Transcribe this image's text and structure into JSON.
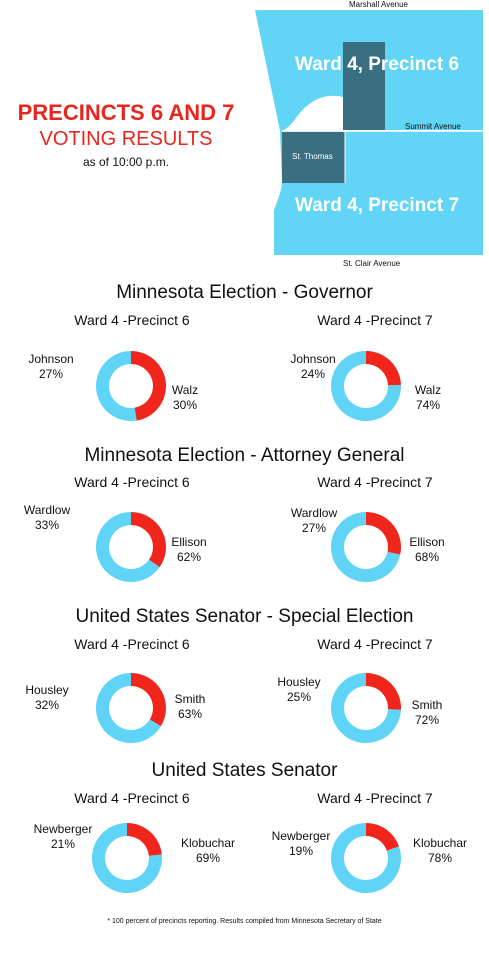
{
  "header": {
    "title_line1": "PRECINCTS 6 AND 7",
    "title_line2": "VOTING RESULTS",
    "subtitle": "as of 10:00 p.m.",
    "accent_color": "#e8261d"
  },
  "map": {
    "streets": {
      "marshall": "Marshall Avenue",
      "summit": "Summit Avenue",
      "st_clair": "St. Clair Avenue"
    },
    "st_thomas": "St. Thomas",
    "precinct6_label": "Ward 4, Precinct 6",
    "precinct7_label": "Ward 4, Precinct 7",
    "colors": {
      "light": "#62d5f6",
      "dark": "#3a6f82"
    }
  },
  "colors": {
    "red": "#f0251c",
    "blue": "#5fd4f7"
  },
  "chart_data": [
    {
      "type": "pie",
      "title": "Minnesota Election - Governor",
      "charts": [
        {
          "precinct": "Ward 4 -Precinct 6",
          "slices": [
            {
              "name": "Johnson",
              "value": 27,
              "label": "27%"
            },
            {
              "name": "Walz",
              "value": 30,
              "label": "30%"
            }
          ]
        },
        {
          "precinct": "Ward 4 -Precinct 7",
          "slices": [
            {
              "name": "Johnson",
              "value": 24,
              "label": "24%"
            },
            {
              "name": "Walz",
              "value": 74,
              "label": "74%"
            }
          ]
        }
      ]
    },
    {
      "type": "pie",
      "title": "Minnesota Election - Attorney General",
      "charts": [
        {
          "precinct": "Ward 4 -Precinct 6",
          "slices": [
            {
              "name": "Wardlow",
              "value": 33,
              "label": "33%"
            },
            {
              "name": "Ellison",
              "value": 62,
              "label": "62%"
            }
          ]
        },
        {
          "precinct": "Ward 4 -Precinct 7",
          "slices": [
            {
              "name": "Wardlow",
              "value": 27,
              "label": "27%"
            },
            {
              "name": "Ellison",
              "value": 68,
              "label": "68%"
            }
          ]
        }
      ]
    },
    {
      "type": "pie",
      "title": "United States Senator - Special Election",
      "charts": [
        {
          "precinct": "Ward 4 -Precinct 6",
          "slices": [
            {
              "name": "Housley",
              "value": 32,
              "label": "32%"
            },
            {
              "name": "Smith",
              "value": 63,
              "label": "63%"
            }
          ]
        },
        {
          "precinct": "Ward 4 -Precinct 7",
          "slices": [
            {
              "name": "Housley",
              "value": 25,
              "label": "25%"
            },
            {
              "name": "Smith",
              "value": 72,
              "label": "72%"
            }
          ]
        }
      ]
    },
    {
      "type": "pie",
      "title": "United States Senator",
      "charts": [
        {
          "precinct": "Ward 4 -Precinct 6",
          "slices": [
            {
              "name": "Newberger",
              "value": 21,
              "label": "21%"
            },
            {
              "name": "Klobuchar",
              "value": 69,
              "label": "69%"
            }
          ]
        },
        {
          "precinct": "Ward 4 -Precinct 7",
          "slices": [
            {
              "name": "Newberger",
              "value": 19,
              "label": "19%"
            },
            {
              "name": "Klobuchar",
              "value": 78,
              "label": "78%"
            }
          ]
        }
      ]
    }
  ],
  "footnote": "* 100 percent of precincts reporting. Results compiled from Minnesota Secretary of State"
}
